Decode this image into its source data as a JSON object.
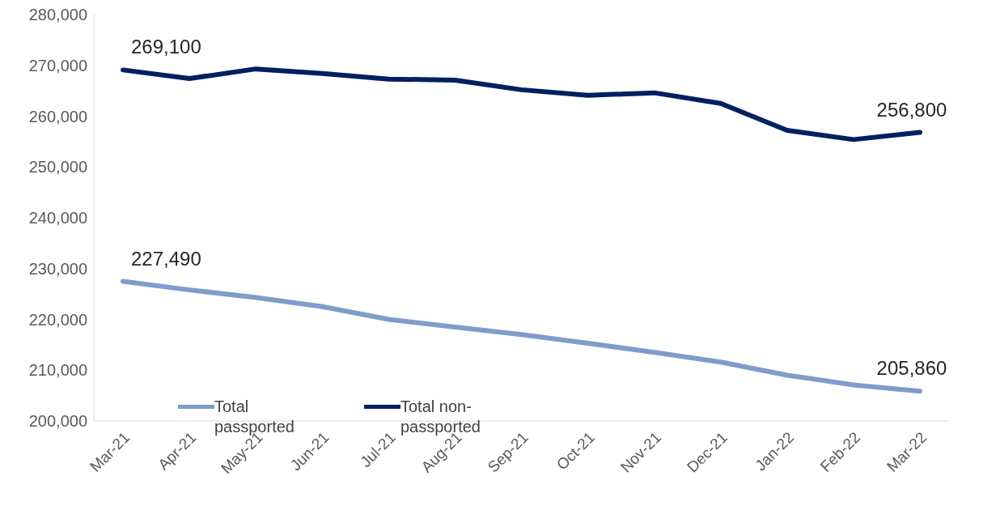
{
  "chart_data": {
    "type": "line",
    "categories": [
      "Mar-21",
      "Apr-21",
      "May-21",
      "Jun-21",
      "Jul-21",
      "Aug-21",
      "Sep-21",
      "Oct-21",
      "Nov-21",
      "Dec-21",
      "Jan-22",
      "Feb-22",
      "Mar-22"
    ],
    "series": [
      {
        "name": "Total passported",
        "color": "#7f9ccb",
        "values": [
          227490,
          225800,
          224300,
          222500,
          220000,
          218500,
          217000,
          215300,
          213500,
          211600,
          209000,
          207100,
          205860
        ],
        "value_labels": [
          "227,490",
          null,
          null,
          null,
          null,
          null,
          null,
          null,
          null,
          null,
          null,
          null,
          "205,860"
        ]
      },
      {
        "name": "Total non-passported",
        "color": "#002060",
        "values": [
          269100,
          267400,
          269300,
          268400,
          267300,
          267100,
          265200,
          264100,
          264600,
          262500,
          257200,
          255400,
          256800
        ],
        "value_labels": [
          "269,100",
          null,
          null,
          null,
          null,
          null,
          null,
          null,
          null,
          null,
          null,
          null,
          "256,800"
        ]
      }
    ],
    "ylim": [
      200000,
      280000
    ],
    "yticks": [
      {
        "value": 200000,
        "label": "200,000"
      },
      {
        "value": 210000,
        "label": "210,000"
      },
      {
        "value": 220000,
        "label": "220,000"
      },
      {
        "value": 230000,
        "label": "230,000"
      },
      {
        "value": 240000,
        "label": "240,000"
      },
      {
        "value": 250000,
        "label": "250,000"
      },
      {
        "value": 260000,
        "label": "260,000"
      },
      {
        "value": 270000,
        "label": "270,000"
      },
      {
        "value": 280000,
        "label": "280,000"
      }
    ],
    "grid": false,
    "legend": "bottom left",
    "marker": "none",
    "line_style": "solid"
  }
}
